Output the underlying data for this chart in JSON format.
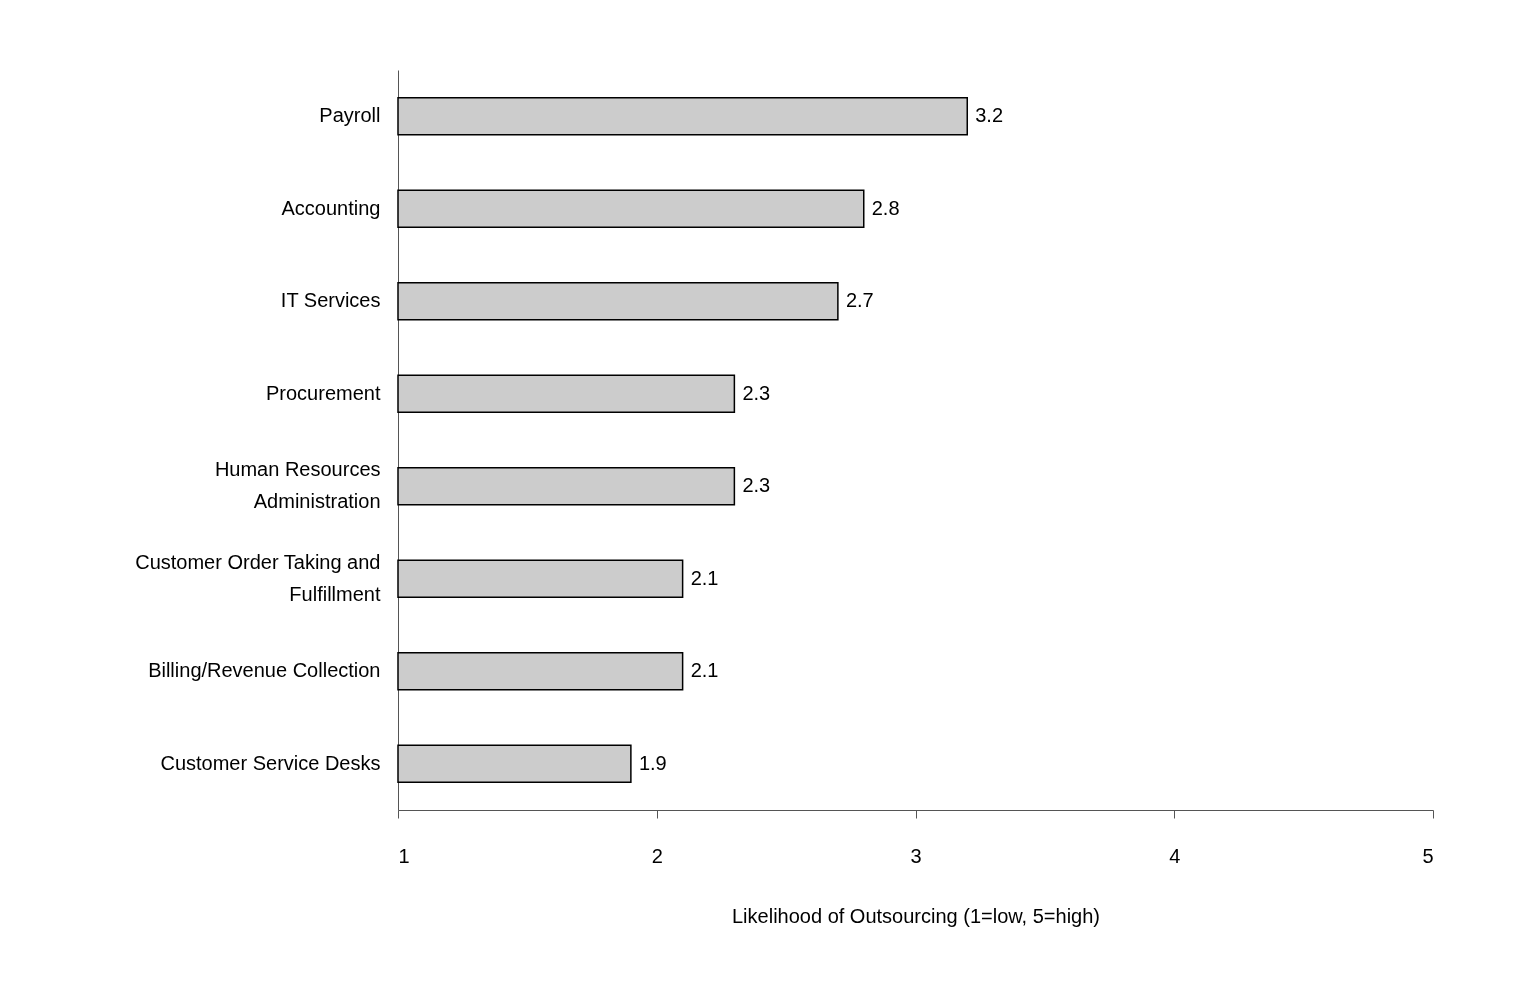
{
  "chart_data": {
    "type": "bar",
    "orientation": "horizontal",
    "categories": [
      "Payroll",
      "Accounting",
      "IT Services",
      "Procurement",
      "Human Resources\nAdministration",
      "Customer Order Taking and\nFulfillment",
      "Billing/Revenue Collection",
      "Customer Service Desks"
    ],
    "values": [
      3.2,
      2.8,
      2.7,
      2.3,
      2.3,
      2.1,
      2.1,
      1.9
    ],
    "color": "#cccccc",
    "xlim": [
      1,
      5
    ],
    "xticks": [
      1,
      2,
      3,
      4,
      5
    ],
    "xlabel": "Likelihood of Outsourcing  (1=low, 5=high)",
    "data_labels": true,
    "grid": false
  }
}
